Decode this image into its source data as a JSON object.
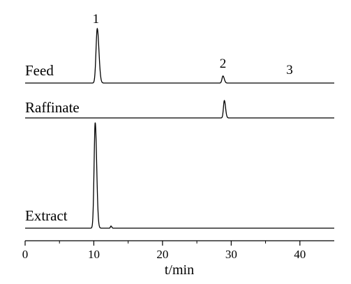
{
  "chart_data": {
    "type": "line",
    "xlabel": "t/min",
    "ylabel": "",
    "xlim": [
      0,
      45
    ],
    "x_ticks": [
      0,
      10,
      20,
      30,
      40
    ],
    "x_tick_labels": [
      "0",
      "10",
      "20",
      "30",
      "40"
    ],
    "grid": false,
    "series": [
      {
        "name": "Feed",
        "baseline_index": 0,
        "peaks": [
          {
            "x": 10.5,
            "height": 1.0,
            "width": 0.18
          },
          {
            "x": 28.8,
            "height": 0.13,
            "width": 0.14
          }
        ]
      },
      {
        "name": "Raffinate",
        "baseline_index": 1,
        "peaks": [
          {
            "x": 29.0,
            "height": 0.32,
            "width": 0.13
          }
        ]
      },
      {
        "name": "Extract",
        "baseline_index": 2,
        "peaks": [
          {
            "x": 10.2,
            "height": 1.94,
            "width": 0.16
          },
          {
            "x": 12.5,
            "height": 0.04,
            "width": 0.08
          }
        ]
      }
    ],
    "peak_labels": [
      {
        "text": "1",
        "x": 10.3
      },
      {
        "text": "2",
        "x": 28.8
      },
      {
        "text": "3",
        "x": 38.5
      }
    ]
  }
}
